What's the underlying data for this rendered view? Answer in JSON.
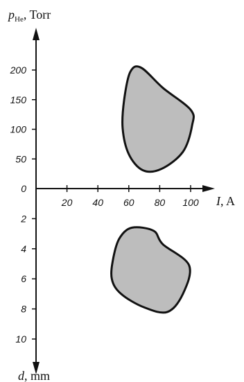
{
  "chart_data": [
    {
      "type": "area",
      "description_region": "upper",
      "x_axis": {
        "symbol": "I",
        "unit": ", A",
        "ticks": [
          20,
          40,
          60,
          80,
          100
        ]
      },
      "y_axis": {
        "symbol": "p",
        "subscript": "He",
        "unit": ", Torr",
        "ticks": [
          0,
          50,
          100,
          150,
          200
        ]
      },
      "region": {
        "fill": "#bdbdbd",
        "outline": "#111111",
        "points": [
          {
            "x": 56,
            "y": 102
          },
          {
            "x": 57,
            "y": 150
          },
          {
            "x": 61,
            "y": 197
          },
          {
            "x": 68,
            "y": 204
          },
          {
            "x": 82,
            "y": 170
          },
          {
            "x": 100,
            "y": 133
          },
          {
            "x": 101,
            "y": 107
          },
          {
            "x": 95,
            "y": 62
          },
          {
            "x": 81,
            "y": 33
          },
          {
            "x": 69,
            "y": 31
          },
          {
            "x": 60,
            "y": 58
          }
        ]
      }
    },
    {
      "type": "area",
      "description_region": "lower",
      "x_axis": {
        "symbol": "I",
        "unit": ", A",
        "ticks": [
          20,
          40,
          60,
          80,
          100
        ]
      },
      "y_axis": {
        "symbol": "d",
        "unit": ", mm",
        "ticks": [
          2,
          4,
          6,
          8,
          10
        ]
      },
      "region": {
        "fill": "#bdbdbd",
        "outline": "#111111",
        "points": [
          {
            "x": 50,
            "y": 4.6
          },
          {
            "x": 54,
            "y": 3.3
          },
          {
            "x": 62,
            "y": 2.6
          },
          {
            "x": 76,
            "y": 2.8
          },
          {
            "x": 82,
            "y": 3.7
          },
          {
            "x": 99,
            "y": 5.1
          },
          {
            "x": 95,
            "y": 7.0
          },
          {
            "x": 85,
            "y": 8.2
          },
          {
            "x": 70,
            "y": 7.9
          },
          {
            "x": 55,
            "y": 7.0
          },
          {
            "x": 49,
            "y": 6.0
          }
        ]
      }
    }
  ],
  "labels": {
    "p_symbol": "p",
    "p_sub": "He",
    "p_unit": ", Torr",
    "i_symbol": "I",
    "i_unit": ", A",
    "d_symbol": "d",
    "d_unit": ", mm",
    "origin": "0"
  }
}
